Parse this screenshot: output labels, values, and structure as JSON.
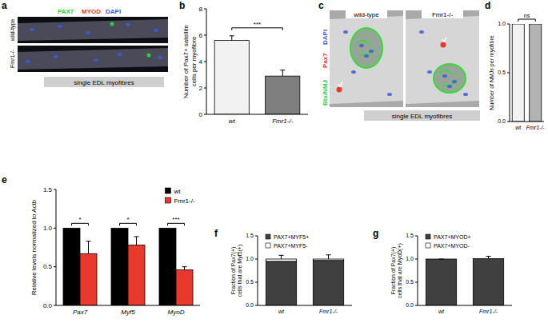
{
  "panel_labels": [
    "a",
    "b",
    "c",
    "d",
    "e",
    "f",
    "g"
  ],
  "images": [
    {
      "stains": [
        {
          "text": "PAX7",
          "color": "#2ecc40"
        },
        {
          "text": "MYOD",
          "color": "#e8392c"
        },
        {
          "text": "DAPI",
          "color": "#3b5bdb"
        }
      ],
      "rows": [
        "wild-type",
        "Fmr1-/-"
      ],
      "caption": "single EDL myofibres"
    },
    {
      "stains": [
        {
          "text": "Btx/NMJ",
          "color": "#2ecc40"
        },
        {
          "text": "Pax7",
          "color": "#e8392c"
        },
        {
          "text": "DAPI",
          "color": "#3b5bdb"
        }
      ],
      "columns": [
        "wild-type",
        "Fmr1-/-"
      ],
      "caption": "single EDL myofibres"
    }
  ],
  "chart_data": [
    {
      "type": "bar",
      "y_label": "Number of Pax7+ satellite cells per myofibre",
      "categories": [
        "wt",
        "Fmr1-/-"
      ],
      "values": [
        5.6,
        2.9
      ],
      "errors": [
        0.35,
        0.45
      ],
      "colors": [
        "#f2f2f2",
        "#7f7f7f"
      ],
      "ylim": [
        0,
        8
      ],
      "yticks": [
        0,
        2,
        4,
        6,
        8
      ],
      "significance": "***"
    },
    {
      "type": "bar",
      "y_label": "Number of NMJs per myofibre",
      "categories": [
        "wt",
        "Fmr1-/-"
      ],
      "values": [
        1,
        1
      ],
      "colors": [
        "#f2f2f2",
        "#b3b3b3"
      ],
      "ylim": [
        0,
        1
      ],
      "yticks": [
        {
          "value": 0,
          "label": "0.0"
        },
        {
          "value": 0.5,
          "label": "0.5"
        },
        {
          "value": 1,
          "label": "1.0"
        }
      ],
      "significance": "ns"
    },
    {
      "type": "bar",
      "y_label": "Relative levels normalized to Actb",
      "categories": [
        "Pax7",
        "Myf5",
        "MyoD"
      ],
      "series": [
        {
          "name": "wt",
          "color": "#000000",
          "values": [
            1,
            1,
            1
          ]
        },
        {
          "name": "Fmr1-/-",
          "color": "#e8392c",
          "values": [
            0.67,
            0.78,
            0.46
          ],
          "errors": [
            0.16,
            0.11,
            0.04
          ]
        }
      ],
      "ylim": [
        0,
        1.5
      ],
      "yticks": [
        {
          "value": 0,
          "label": "0.0"
        },
        {
          "value": 0.5,
          "label": "0.5"
        },
        {
          "value": 1,
          "label": "1.0"
        },
        {
          "value": 1.5,
          "label": "1.5"
        }
      ],
      "legend": "upper right",
      "significance": [
        "*",
        "*",
        "***"
      ]
    },
    {
      "type": "bar",
      "stacked": true,
      "y_label": "Fraction of Pax7(+) cells that are Myf5(+)",
      "categories": [
        "wt",
        "Fmr1-/-"
      ],
      "series": [
        {
          "name": "PAX7+MYF5+",
          "color": "#404040",
          "values": [
            0.95,
            0.97
          ],
          "errors": [
            0.13,
            0.12
          ]
        },
        {
          "name": "PAX7+MYF5-",
          "color": "#ffffff",
          "values": [
            0.05,
            0.03
          ]
        }
      ],
      "ylim": [
        0,
        1.5
      ],
      "yticks": [
        {
          "value": 0,
          "label": "0.0"
        },
        {
          "value": 0.5,
          "label": "0.5"
        },
        {
          "value": 1,
          "label": "1.0"
        },
        {
          "value": 1.5,
          "label": "1.5"
        }
      ],
      "legend": "upper left"
    },
    {
      "type": "bar",
      "stacked": true,
      "y_label": "Fraction of Pax7(+) cells that are MyoD(+)",
      "categories": [
        "wt",
        "Fmr1-/-"
      ],
      "series": [
        {
          "name": "PAX7+MYOD+",
          "color": "#404040",
          "values": [
            1,
            1.01
          ],
          "errors": [
            0,
            0.05
          ]
        },
        {
          "name": "PAX7+MYOD-",
          "color": "#ffffff",
          "values": [
            0,
            0
          ]
        }
      ],
      "ylim": [
        0,
        1.5
      ],
      "yticks": [
        {
          "value": 0,
          "label": "0.0"
        },
        {
          "value": 0.5,
          "label": "0.5"
        },
        {
          "value": 1,
          "label": "1.0"
        },
        {
          "value": 1.5,
          "label": "1.5"
        }
      ],
      "legend": "upper left"
    }
  ]
}
